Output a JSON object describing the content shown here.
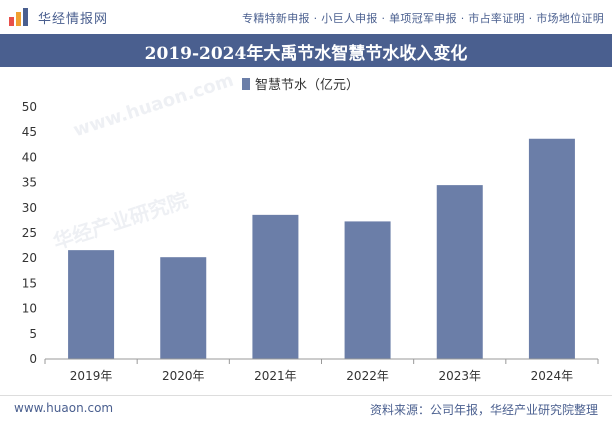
{
  "header": {
    "logo_text": "华经情报网",
    "links": "专精特新申报 · 小巨人申报 · 单项冠军申报 · 市占率证明 · 市场地位证明"
  },
  "chart_data": {
    "type": "bar",
    "title": "2019-2024年大禹节水智慧节水收入变化",
    "categories": [
      "2019年",
      "2020年",
      "2021年",
      "2022年",
      "2023年",
      "2024年"
    ],
    "series": [
      {
        "name": "智慧节水（亿元）",
        "values": [
          21.6,
          20.2,
          28.6,
          27.3,
          34.5,
          43.7
        ]
      }
    ],
    "ylim": [
      0,
      50
    ],
    "yticks": [
      0,
      5,
      10,
      15,
      20,
      25,
      30,
      35,
      40,
      45,
      50
    ],
    "xlabel": "",
    "ylabel": "",
    "legend_position": "top-center",
    "grid": false,
    "colors": {
      "bar": "#6b7ea8",
      "axis": "#999999"
    }
  },
  "watermark": {
    "text_cn": "华经产业研究院",
    "text_en": "www.huaon.com"
  },
  "footer": {
    "website": "www.huaon.com",
    "source": "资料来源：公司年报，华经产业研究院整理"
  }
}
